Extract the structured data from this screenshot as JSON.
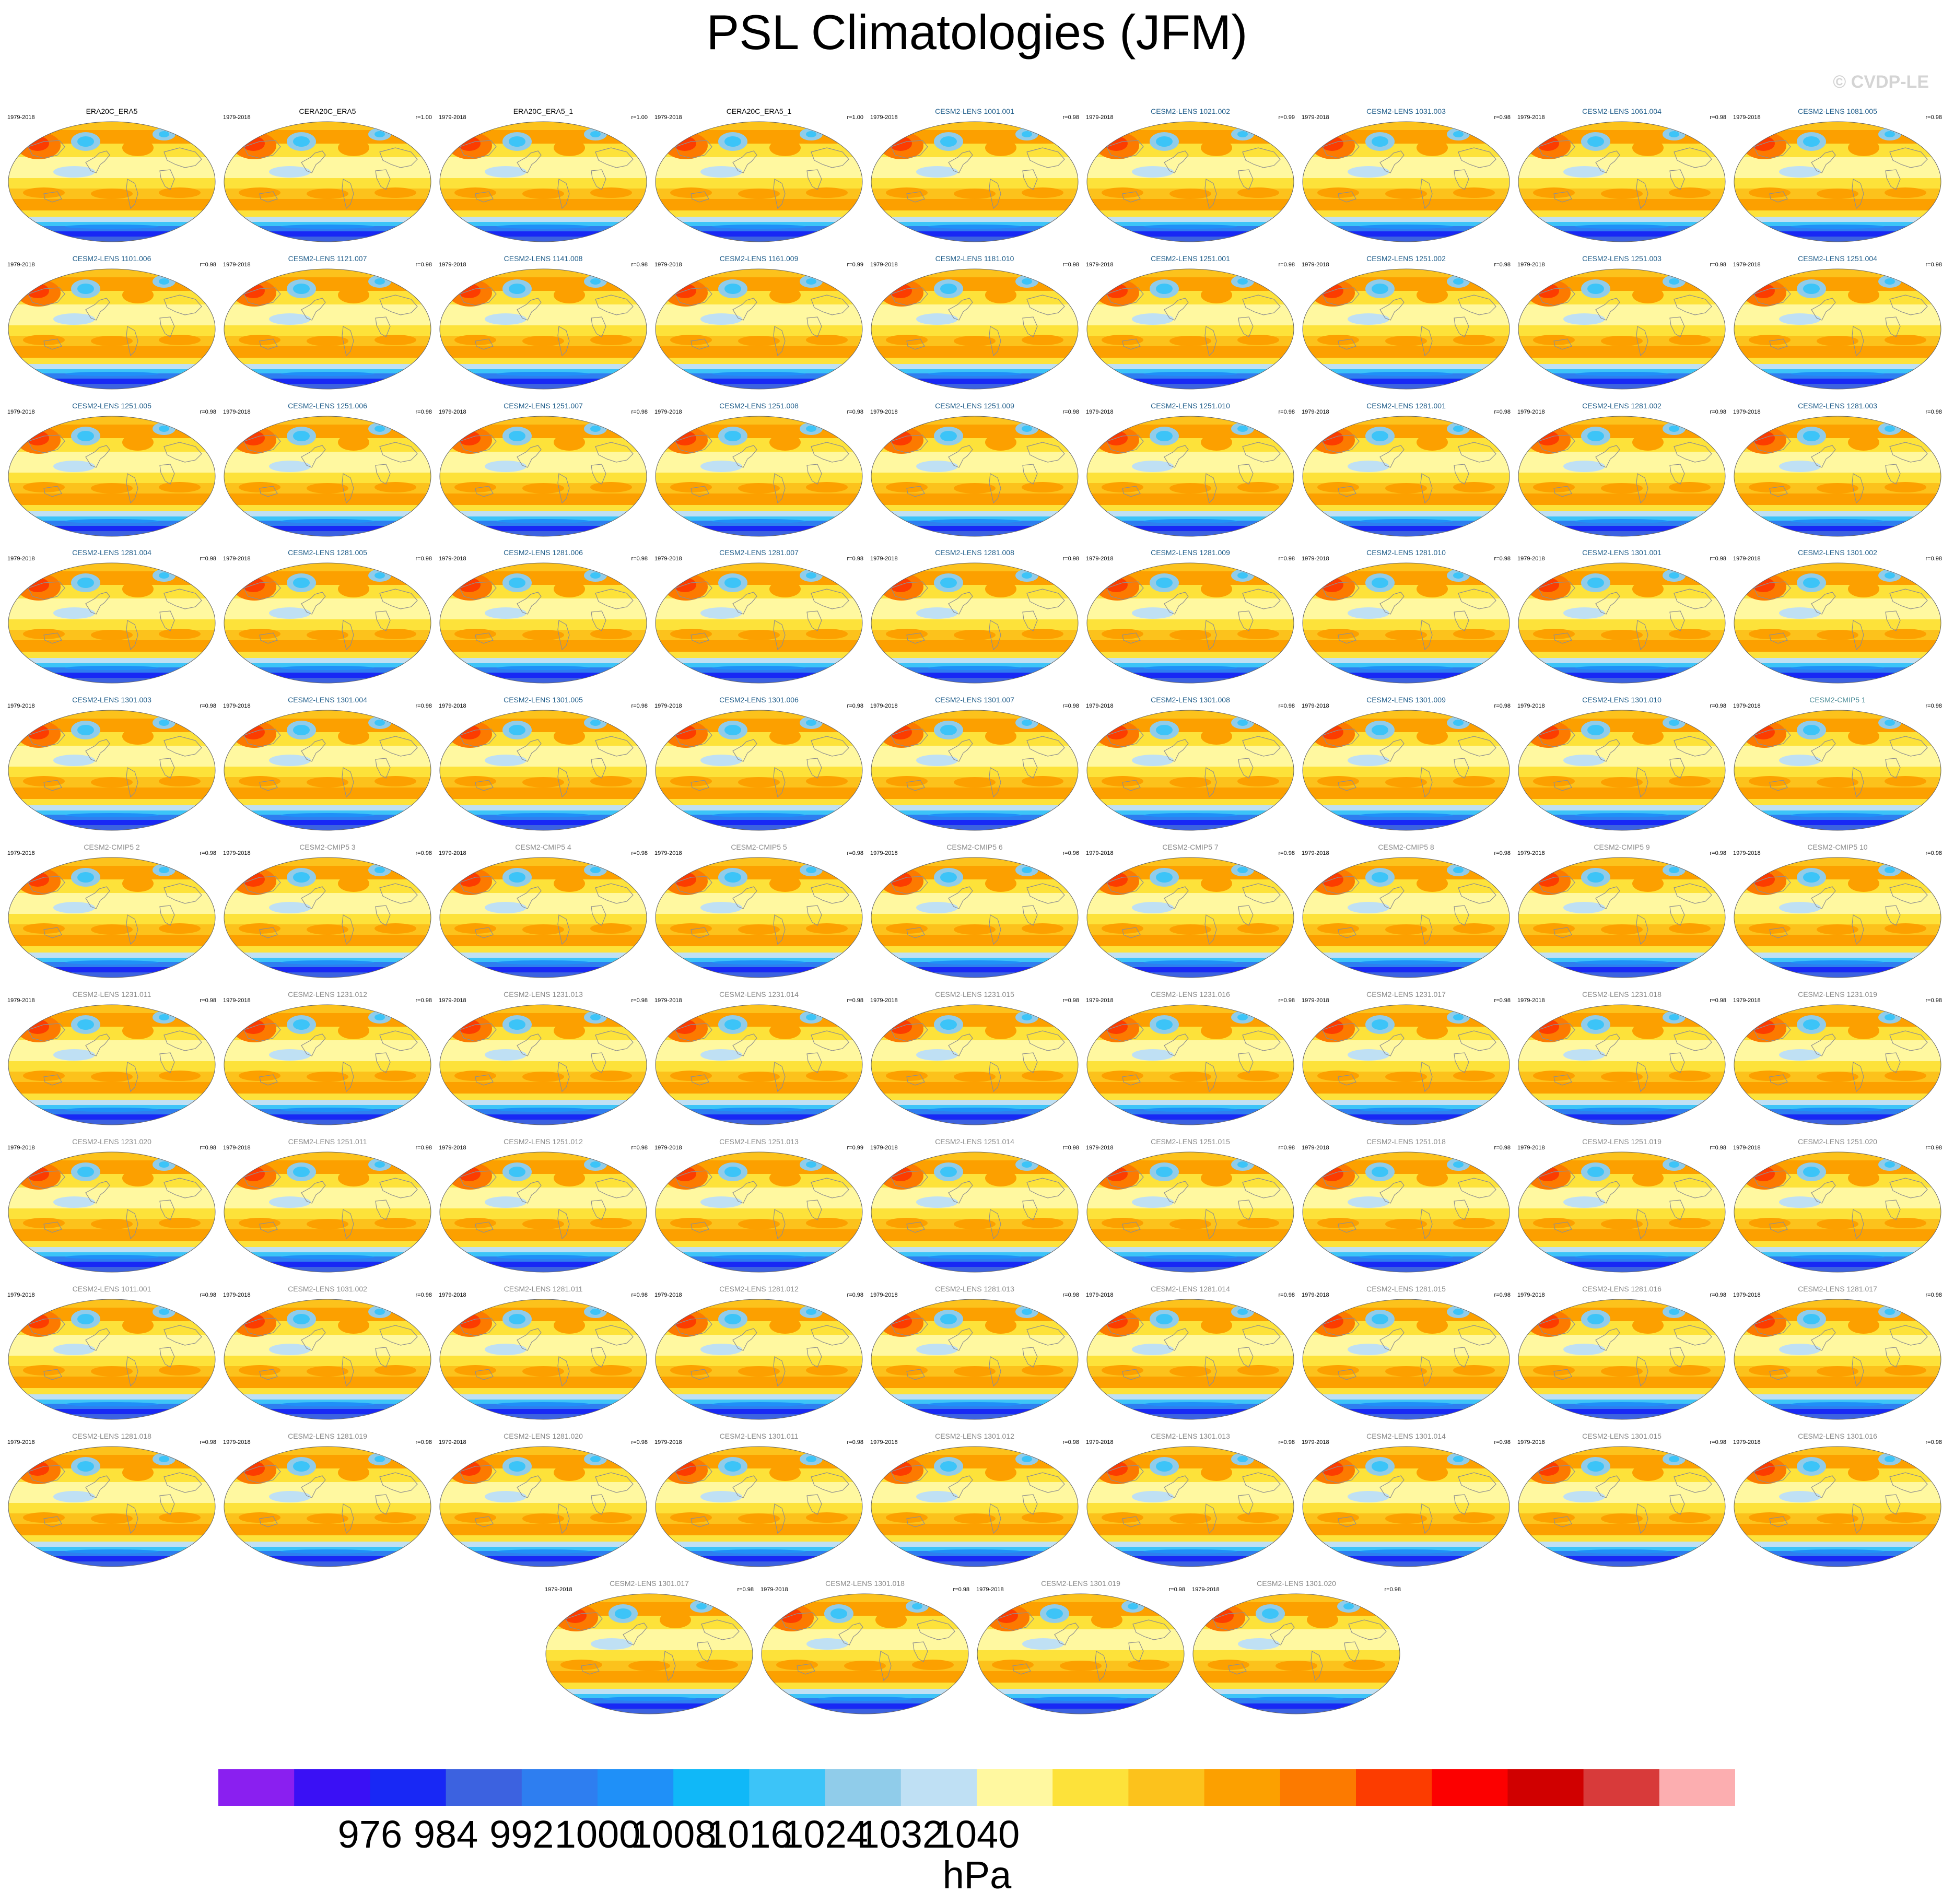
{
  "title": "PSL Climatologies (JFM)",
  "watermark": "© CVDP-LE",
  "period": "1979-2018",
  "title_colors": {
    "obs": "#000000",
    "lens": "#1f5d8a",
    "cmip": "#4f8f9a",
    "gray": "#8a8a8a"
  },
  "chart_data": {
    "type": "heatmap",
    "variable": "PSL",
    "season": "JFM",
    "units": "hPa",
    "colorbar": {
      "ticks": [
        "976",
        "984",
        "992",
        "1000",
        "1008",
        "1016",
        "1024",
        "1032",
        "1040"
      ],
      "colors": [
        "#8a1ff0",
        "#3a10f5",
        "#1828f5",
        "#3c62e0",
        "#2e7ef0",
        "#1f90f8",
        "#10b8f8",
        "#3cc4f8",
        "#90ccea",
        "#bfe0f4",
        "#fff8a0",
        "#fde23a",
        "#fcc21c",
        "#fca000",
        "#fc7a00",
        "#fc3c00",
        "#fc0000",
        "#d00000",
        "#d83a3a",
        "#fcaeb0"
      ]
    },
    "panels": [
      {
        "name": "ERA20C_ERA5",
        "corr": "",
        "group": "obs"
      },
      {
        "name": "CERA20C_ERA5",
        "corr": "r=1.00",
        "group": "obs"
      },
      {
        "name": "ERA20C_ERA5_1",
        "corr": "r=1.00",
        "group": "obs"
      },
      {
        "name": "CERA20C_ERA5_1",
        "corr": "r=1.00",
        "group": "obs"
      },
      {
        "name": "CESM2-LENS 1001.001",
        "corr": "r=0.98",
        "group": "lens"
      },
      {
        "name": "CESM2-LENS 1021.002",
        "corr": "r=0.99",
        "group": "lens"
      },
      {
        "name": "CESM2-LENS 1031.003",
        "corr": "r=0.98",
        "group": "lens"
      },
      {
        "name": "CESM2-LENS 1061.004",
        "corr": "r=0.98",
        "group": "lens"
      },
      {
        "name": "CESM2-LENS 1081.005",
        "corr": "r=0.98",
        "group": "lens"
      },
      {
        "name": "CESM2-LENS 1101.006",
        "corr": "r=0.98",
        "group": "lens"
      },
      {
        "name": "CESM2-LENS 1121.007",
        "corr": "r=0.98",
        "group": "lens"
      },
      {
        "name": "CESM2-LENS 1141.008",
        "corr": "r=0.98",
        "group": "lens"
      },
      {
        "name": "CESM2-LENS 1161.009",
        "corr": "r=0.99",
        "group": "lens"
      },
      {
        "name": "CESM2-LENS 1181.010",
        "corr": "r=0.98",
        "group": "lens"
      },
      {
        "name": "CESM2-LENS 1251.001",
        "corr": "r=0.98",
        "group": "lens"
      },
      {
        "name": "CESM2-LENS 1251.002",
        "corr": "r=0.98",
        "group": "lens"
      },
      {
        "name": "CESM2-LENS 1251.003",
        "corr": "r=0.98",
        "group": "lens"
      },
      {
        "name": "CESM2-LENS 1251.004",
        "corr": "r=0.98",
        "group": "lens"
      },
      {
        "name": "CESM2-LENS 1251.005",
        "corr": "r=0.98",
        "group": "lens"
      },
      {
        "name": "CESM2-LENS 1251.006",
        "corr": "r=0.98",
        "group": "lens"
      },
      {
        "name": "CESM2-LENS 1251.007",
        "corr": "r=0.98",
        "group": "lens"
      },
      {
        "name": "CESM2-LENS 1251.008",
        "corr": "r=0.98",
        "group": "lens"
      },
      {
        "name": "CESM2-LENS 1251.009",
        "corr": "r=0.98",
        "group": "lens"
      },
      {
        "name": "CESM2-LENS 1251.010",
        "corr": "r=0.98",
        "group": "lens"
      },
      {
        "name": "CESM2-LENS 1281.001",
        "corr": "r=0.98",
        "group": "lens"
      },
      {
        "name": "CESM2-LENS 1281.002",
        "corr": "r=0.98",
        "group": "lens"
      },
      {
        "name": "CESM2-LENS 1281.003",
        "corr": "r=0.98",
        "group": "lens"
      },
      {
        "name": "CESM2-LENS 1281.004",
        "corr": "r=0.98",
        "group": "lens"
      },
      {
        "name": "CESM2-LENS 1281.005",
        "corr": "r=0.98",
        "group": "lens"
      },
      {
        "name": "CESM2-LENS 1281.006",
        "corr": "r=0.98",
        "group": "lens"
      },
      {
        "name": "CESM2-LENS 1281.007",
        "corr": "r=0.98",
        "group": "lens"
      },
      {
        "name": "CESM2-LENS 1281.008",
        "corr": "r=0.98",
        "group": "lens"
      },
      {
        "name": "CESM2-LENS 1281.009",
        "corr": "r=0.98",
        "group": "lens"
      },
      {
        "name": "CESM2-LENS 1281.010",
        "corr": "r=0.98",
        "group": "lens"
      },
      {
        "name": "CESM2-LENS 1301.001",
        "corr": "r=0.98",
        "group": "lens"
      },
      {
        "name": "CESM2-LENS 1301.002",
        "corr": "r=0.98",
        "group": "lens"
      },
      {
        "name": "CESM2-LENS 1301.003",
        "corr": "r=0.98",
        "group": "lens"
      },
      {
        "name": "CESM2-LENS 1301.004",
        "corr": "r=0.98",
        "group": "lens"
      },
      {
        "name": "CESM2-LENS 1301.005",
        "corr": "r=0.98",
        "group": "lens"
      },
      {
        "name": "CESM2-LENS 1301.006",
        "corr": "r=0.98",
        "group": "lens"
      },
      {
        "name": "CESM2-LENS 1301.007",
        "corr": "r=0.98",
        "group": "lens"
      },
      {
        "name": "CESM2-LENS 1301.008",
        "corr": "r=0.98",
        "group": "lens"
      },
      {
        "name": "CESM2-LENS 1301.009",
        "corr": "r=0.98",
        "group": "lens"
      },
      {
        "name": "CESM2-LENS 1301.010",
        "corr": "r=0.98",
        "group": "lens"
      },
      {
        "name": "CESM2-CMIP5 1",
        "corr": "r=0.98",
        "group": "cmip"
      },
      {
        "name": "CESM2-CMIP5 2",
        "corr": "r=0.98",
        "group": "gray"
      },
      {
        "name": "CESM2-CMIP5 3",
        "corr": "r=0.98",
        "group": "gray"
      },
      {
        "name": "CESM2-CMIP5 4",
        "corr": "r=0.98",
        "group": "gray"
      },
      {
        "name": "CESM2-CMIP5 5",
        "corr": "r=0.98",
        "group": "gray"
      },
      {
        "name": "CESM2-CMIP5 6",
        "corr": "r=0.96",
        "group": "gray"
      },
      {
        "name": "CESM2-CMIP5 7",
        "corr": "r=0.98",
        "group": "gray"
      },
      {
        "name": "CESM2-CMIP5 8",
        "corr": "r=0.98",
        "group": "gray"
      },
      {
        "name": "CESM2-CMIP5 9",
        "corr": "r=0.98",
        "group": "gray"
      },
      {
        "name": "CESM2-CMIP5 10",
        "corr": "r=0.98",
        "group": "gray"
      },
      {
        "name": "CESM2-LENS 1231.011",
        "corr": "r=0.98",
        "group": "gray"
      },
      {
        "name": "CESM2-LENS 1231.012",
        "corr": "r=0.98",
        "group": "gray"
      },
      {
        "name": "CESM2-LENS 1231.013",
        "corr": "r=0.98",
        "group": "gray"
      },
      {
        "name": "CESM2-LENS 1231.014",
        "corr": "r=0.98",
        "group": "gray"
      },
      {
        "name": "CESM2-LENS 1231.015",
        "corr": "r=0.98",
        "group": "gray"
      },
      {
        "name": "CESM2-LENS 1231.016",
        "corr": "r=0.98",
        "group": "gray"
      },
      {
        "name": "CESM2-LENS 1231.017",
        "corr": "r=0.98",
        "group": "gray"
      },
      {
        "name": "CESM2-LENS 1231.018",
        "corr": "r=0.98",
        "group": "gray"
      },
      {
        "name": "CESM2-LENS 1231.019",
        "corr": "r=0.98",
        "group": "gray"
      },
      {
        "name": "CESM2-LENS 1231.020",
        "corr": "r=0.98",
        "group": "gray"
      },
      {
        "name": "CESM2-LENS 1251.011",
        "corr": "r=0.98",
        "group": "gray"
      },
      {
        "name": "CESM2-LENS 1251.012",
        "corr": "r=0.98",
        "group": "gray"
      },
      {
        "name": "CESM2-LENS 1251.013",
        "corr": "r=0.99",
        "group": "gray"
      },
      {
        "name": "CESM2-LENS 1251.014",
        "corr": "r=0.98",
        "group": "gray"
      },
      {
        "name": "CESM2-LENS 1251.015",
        "corr": "r=0.98",
        "group": "gray"
      },
      {
        "name": "CESM2-LENS 1251.018",
        "corr": "r=0.98",
        "group": "gray"
      },
      {
        "name": "CESM2-LENS 1251.019",
        "corr": "r=0.98",
        "group": "gray"
      },
      {
        "name": "CESM2-LENS 1251.020",
        "corr": "r=0.98",
        "group": "gray"
      },
      {
        "name": "CESM2-LENS 1011.001",
        "corr": "r=0.98",
        "group": "gray"
      },
      {
        "name": "CESM2-LENS 1031.002",
        "corr": "r=0.98",
        "group": "gray"
      },
      {
        "name": "CESM2-LENS 1281.011",
        "corr": "r=0.98",
        "group": "gray"
      },
      {
        "name": "CESM2-LENS 1281.012",
        "corr": "r=0.98",
        "group": "gray"
      },
      {
        "name": "CESM2-LENS 1281.013",
        "corr": "r=0.98",
        "group": "gray"
      },
      {
        "name": "CESM2-LENS 1281.014",
        "corr": "r=0.98",
        "group": "gray"
      },
      {
        "name": "CESM2-LENS 1281.015",
        "corr": "r=0.98",
        "group": "gray"
      },
      {
        "name": "CESM2-LENS 1281.016",
        "corr": "r=0.98",
        "group": "gray"
      },
      {
        "name": "CESM2-LENS 1281.017",
        "corr": "r=0.98",
        "group": "gray"
      },
      {
        "name": "CESM2-LENS 1281.018",
        "corr": "r=0.98",
        "group": "gray"
      },
      {
        "name": "CESM2-LENS 1281.019",
        "corr": "r=0.98",
        "group": "gray"
      },
      {
        "name": "CESM2-LENS 1281.020",
        "corr": "r=0.98",
        "group": "gray"
      },
      {
        "name": "CESM2-LENS 1301.011",
        "corr": "r=0.98",
        "group": "gray"
      },
      {
        "name": "CESM2-LENS 1301.012",
        "corr": "r=0.98",
        "group": "gray"
      },
      {
        "name": "CESM2-LENS 1301.013",
        "corr": "r=0.98",
        "group": "gray"
      },
      {
        "name": "CESM2-LENS 1301.014",
        "corr": "r=0.98",
        "group": "gray"
      },
      {
        "name": "CESM2-LENS 1301.015",
        "corr": "r=0.98",
        "group": "gray"
      },
      {
        "name": "CESM2-LENS 1301.016",
        "corr": "r=0.98",
        "group": "gray"
      },
      {
        "name": "CESM2-LENS 1301.017",
        "corr": "r=0.98",
        "group": "gray"
      },
      {
        "name": "CESM2-LENS 1301.018",
        "corr": "r=0.98",
        "group": "gray"
      },
      {
        "name": "CESM2-LENS 1301.019",
        "corr": "r=0.98",
        "group": "gray"
      },
      {
        "name": "CESM2-LENS 1301.020",
        "corr": "r=0.98",
        "group": "gray"
      }
    ]
  }
}
